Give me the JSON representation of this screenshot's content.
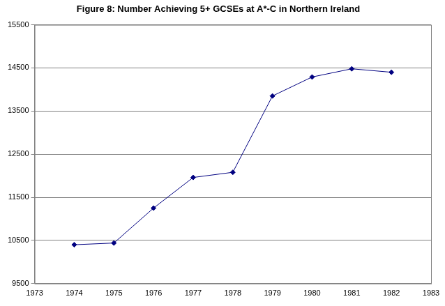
{
  "chart_data": {
    "type": "line",
    "title": "Figure 8: Number Achieving 5+ GCSEs at A*-C in Northern Ireland",
    "x": [
      1974,
      1975,
      1976,
      1977,
      1978,
      1979,
      1980,
      1981,
      1982
    ],
    "values": [
      10400,
      10440,
      11250,
      11960,
      12080,
      13850,
      14290,
      14480,
      14400
    ],
    "color": "#000080",
    "marker": "diamond",
    "xlim": [
      1973,
      1983
    ],
    "xticks": [
      1973,
      1974,
      1975,
      1976,
      1977,
      1978,
      1979,
      1980,
      1981,
      1982,
      1983
    ],
    "ylim": [
      9500,
      15500
    ],
    "yticks": [
      9500,
      10500,
      11500,
      12500,
      13500,
      14500,
      15500
    ],
    "grid": true
  }
}
